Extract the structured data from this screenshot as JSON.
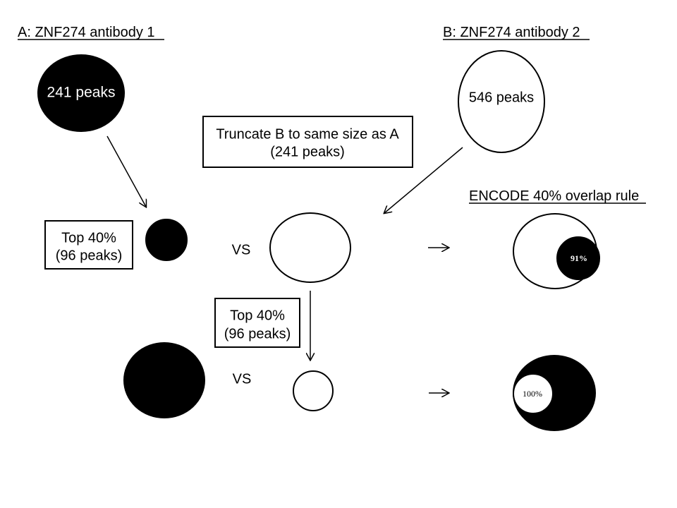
{
  "headings": {
    "antibody_a": "A: ZNF274 antibody 1",
    "antibody_b": "B: ZNF274 antibody 2",
    "encode_rule": "ENCODE 40% overlap rule"
  },
  "circles": {
    "a_peaks": "241 peaks",
    "b_peaks": "546 peaks",
    "overlap_row1": "91%",
    "overlap_row2": "100%"
  },
  "boxes": {
    "truncate_line1": "Truncate B to same size as A",
    "truncate_line2": "(241 peaks)",
    "top40_a_line1": "Top 40%",
    "top40_a_line2": "(96 peaks)",
    "top40_b_line1": "Top 40%",
    "top40_b_line2": "(96 peaks)"
  },
  "comparison": {
    "vs_row1": "VS",
    "vs_row2": "VS"
  },
  "colors": {
    "filled": "#000000",
    "empty": "#ffffff"
  }
}
